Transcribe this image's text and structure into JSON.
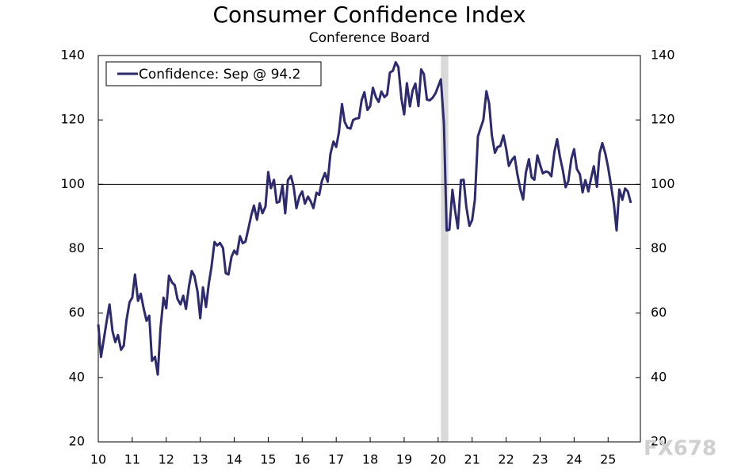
{
  "chart_data": {
    "type": "line",
    "title": "Consumer Confidence Index",
    "subtitle": "Conference Board",
    "watermark": "FX678",
    "x": [
      10.0,
      10.08,
      10.17,
      10.25,
      10.33,
      10.42,
      10.5,
      10.58,
      10.67,
      10.75,
      10.83,
      10.92,
      11.0,
      11.08,
      11.17,
      11.25,
      11.33,
      11.42,
      11.5,
      11.58,
      11.67,
      11.75,
      11.83,
      11.92,
      12.0,
      12.08,
      12.17,
      12.25,
      12.33,
      12.42,
      12.5,
      12.58,
      12.67,
      12.75,
      12.83,
      12.92,
      13.0,
      13.08,
      13.17,
      13.25,
      13.33,
      13.42,
      13.5,
      13.58,
      13.67,
      13.75,
      13.83,
      13.92,
      14.0,
      14.08,
      14.17,
      14.25,
      14.33,
      14.42,
      14.5,
      14.58,
      14.67,
      14.75,
      14.83,
      14.92,
      15.0,
      15.08,
      15.17,
      15.25,
      15.33,
      15.42,
      15.5,
      15.58,
      15.67,
      15.75,
      15.83,
      15.92,
      16.0,
      16.08,
      16.17,
      16.25,
      16.33,
      16.42,
      16.5,
      16.58,
      16.67,
      16.75,
      16.83,
      16.92,
      17.0,
      17.08,
      17.17,
      17.25,
      17.33,
      17.42,
      17.5,
      17.58,
      17.67,
      17.75,
      17.83,
      17.92,
      18.0,
      18.08,
      18.17,
      18.25,
      18.33,
      18.42,
      18.5,
      18.58,
      18.67,
      18.75,
      18.83,
      18.92,
      19.0,
      19.08,
      19.17,
      19.25,
      19.33,
      19.42,
      19.5,
      19.58,
      19.67,
      19.75,
      19.83,
      19.92,
      20.0,
      20.08,
      20.17,
      20.25,
      20.33,
      20.42,
      20.5,
      20.58,
      20.67,
      20.75,
      20.83,
      20.92,
      21.0,
      21.08,
      21.17,
      21.25,
      21.33,
      21.42,
      21.5,
      21.58,
      21.67,
      21.75,
      21.83,
      21.92,
      22.0,
      22.08,
      22.17,
      22.25,
      22.33,
      22.42,
      22.5,
      22.58,
      22.67,
      22.75,
      22.83,
      22.92,
      23.0,
      23.08,
      23.17,
      23.25,
      23.33,
      23.42,
      23.5,
      23.58,
      23.67,
      23.75,
      23.83,
      23.92,
      24.0,
      24.08,
      24.17,
      24.25,
      24.33,
      24.42,
      24.5,
      24.58,
      24.67,
      24.75,
      24.83,
      24.92,
      25.0,
      25.08,
      25.17,
      25.25,
      25.33,
      25.42,
      25.5,
      25.58,
      25.67
    ],
    "series": [
      {
        "name": "Confidence: Sep @ 94.2",
        "color": "#2e2a6e",
        "values": [
          56.5,
          46.4,
          52.3,
          57.7,
          62.7,
          54.3,
          51.0,
          53.2,
          48.6,
          49.9,
          57.8,
          63.4,
          64.8,
          72.0,
          63.8,
          66.0,
          61.7,
          57.6,
          59.2,
          45.2,
          46.4,
          40.9,
          55.2,
          64.8,
          61.5,
          71.6,
          69.5,
          68.7,
          64.4,
          62.7,
          65.4,
          61.3,
          68.4,
          73.1,
          71.5,
          66.7,
          58.4,
          68.0,
          61.9,
          69.0,
          74.3,
          82.1,
          81.0,
          81.8,
          80.2,
          72.4,
          72.0,
          77.5,
          79.4,
          78.3,
          83.9,
          81.7,
          82.2,
          86.4,
          90.3,
          93.4,
          89.0,
          94.1,
          91.0,
          93.1,
          103.8,
          98.8,
          101.4,
          94.3,
          94.6,
          99.8,
          91.0,
          101.3,
          102.6,
          99.1,
          92.6,
          96.3,
          97.8,
          94.0,
          96.2,
          94.7,
          92.6,
          97.4,
          96.7,
          101.1,
          103.5,
          100.8,
          109.4,
          113.3,
          111.6,
          116.1,
          124.9,
          119.4,
          117.6,
          117.3,
          120.0,
          120.4,
          120.6,
          126.2,
          128.6,
          123.1,
          124.3,
          130.0,
          127.0,
          125.6,
          128.8,
          127.1,
          127.9,
          134.7,
          135.3,
          137.9,
          136.4,
          126.6,
          121.7,
          131.4,
          124.2,
          129.2,
          131.3,
          124.3,
          135.7,
          134.2,
          126.3,
          126.1,
          126.8,
          128.2,
          130.4,
          132.6,
          118.8,
          85.7,
          85.9,
          98.3,
          91.7,
          86.3,
          101.3,
          101.4,
          92.9,
          87.1,
          88.9,
          95.2,
          114.9,
          117.5,
          120.0,
          128.9,
          125.1,
          115.2,
          109.8,
          111.6,
          111.9,
          115.2,
          111.1,
          105.7,
          107.6,
          108.6,
          103.2,
          98.4,
          95.3,
          103.6,
          107.8,
          102.2,
          101.4,
          109.0,
          106.0,
          103.4,
          104.0,
          103.7,
          102.5,
          110.1,
          114.0,
          108.7,
          104.3,
          99.1,
          101.0,
          108.0,
          110.9,
          104.8,
          103.1,
          97.5,
          101.3,
          97.8,
          101.9,
          105.6,
          99.2,
          109.6,
          112.8,
          109.5,
          105.3,
          100.1,
          93.9,
          85.7,
          98.4,
          95.2,
          98.7,
          97.8,
          94.2
        ]
      }
    ],
    "xlim": [
      10,
      25.95
    ],
    "xticks": [
      10,
      11,
      12,
      13,
      14,
      15,
      16,
      17,
      18,
      19,
      20,
      21,
      22,
      23,
      24,
      25
    ],
    "ylim": [
      20,
      140
    ],
    "yticks": [
      20,
      40,
      60,
      80,
      100,
      120,
      140
    ],
    "y2lim": [
      20,
      140
    ],
    "y2ticks": [
      20,
      40,
      60,
      80,
      100,
      120,
      140
    ],
    "hline": 100,
    "shaded_regions": [
      [
        20.08,
        20.3
      ]
    ],
    "shade_color": "#d9d9d9",
    "legend": "upper left"
  }
}
